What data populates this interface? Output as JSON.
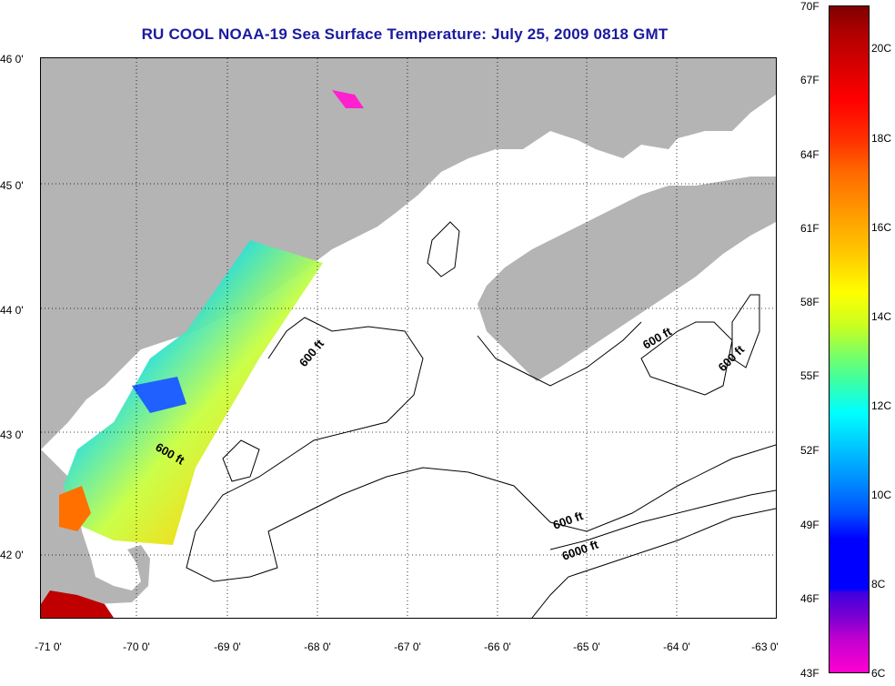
{
  "title": "RU COOL  NOAA-19  Sea Surface Temperature:  July 25, 2009 0818 GMT",
  "y_axis_labels": [
    "46 0'",
    "45 0'",
    "44 0'",
    "43 0'",
    "42 0'"
  ],
  "x_axis_labels": [
    "-71 0'",
    "-70 0'",
    "-69 0'",
    "-68 0'",
    "-67 0'",
    "-66 0'",
    "-65 0'",
    "-64 0'",
    "-63 0'"
  ],
  "contour_labels": [
    "600 ft",
    "600 ft",
    "600 ft",
    "600 ft",
    "600 ft",
    "6000 ft"
  ],
  "colorbar": {
    "fahrenheit": [
      "70F",
      "67F",
      "64F",
      "61F",
      "58F",
      "55F",
      "52F",
      "49F",
      "46F",
      "43F"
    ],
    "celsius": [
      "20C",
      "18C",
      "16C",
      "14C",
      "12C",
      "10C",
      "8C",
      "6C"
    ]
  },
  "colors": {
    "land": "#b4b4b4",
    "title": "#1a1aa0"
  }
}
